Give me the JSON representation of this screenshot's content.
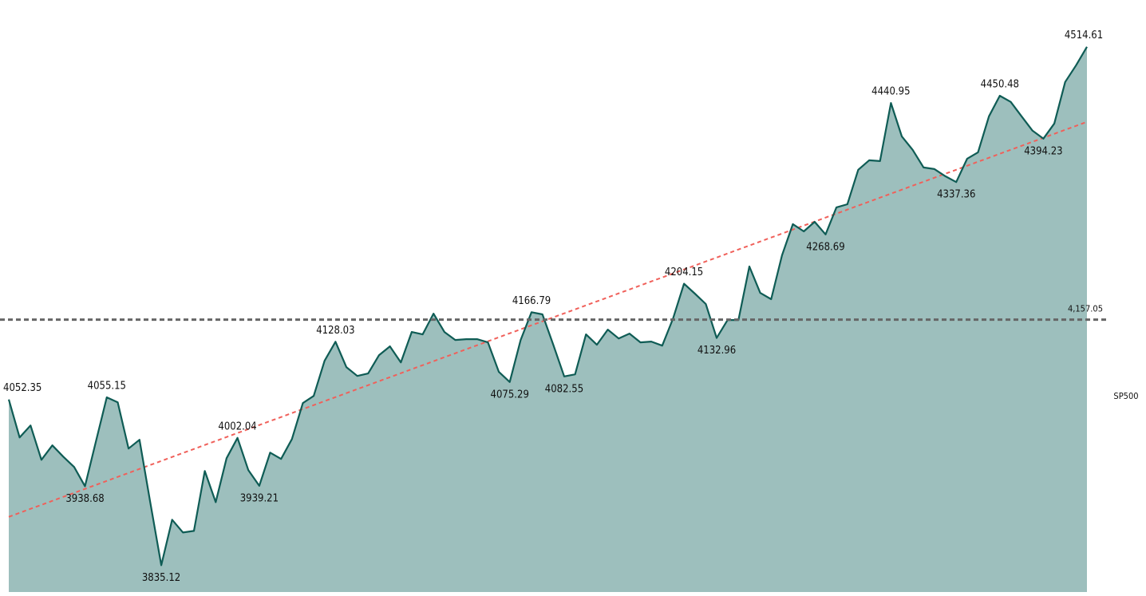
{
  "chart_data": {
    "type": "area",
    "ylim": [
      3800,
      4576
    ],
    "trend_line": true,
    "trend_color": "#f0605a",
    "reference_line": {
      "value": 4157.05,
      "label": "4,157.05"
    },
    "reference_color": "#666666",
    "series": [
      {
        "name": "SP500",
        "color": "#0f5c55",
        "fill": "#9dbfbd",
        "values": [
          4052.35,
          4002.6,
          4018.3,
          3973.3,
          3992.2,
          3977.5,
          3963.9,
          3938.68,
          3997.4,
          4055.15,
          4048.7,
          3988.0,
          3999.5,
          3916.8,
          3835.12,
          3894.8,
          3878.0,
          3880.1,
          3958.6,
          3917.8,
          3975.4,
          4002.04,
          3959.7,
          3939.21,
          3982.7,
          3974.4,
          4000.5,
          4047.6,
          4057.1,
          4103.1,
          4128.03,
          4094.8,
          4083.2,
          4086.4,
          4110.5,
          4122.0,
          4101.0,
          4140.8,
          4137.7,
          4164.9,
          4140.8,
          4130.4,
          4131.4,
          4131.4,
          4127.2,
          4088.5,
          4075.29,
          4130.4,
          4166.79,
          4163.9,
          4124.1,
          4082.55,
          4085.3,
          4137.7,
          4124.1,
          4144.0,
          4132.4,
          4138.7,
          4127.2,
          4128.3,
          4123.0,
          4158.6,
          4204.15,
          4191.1,
          4177.5,
          4132.96,
          4156.5,
          4156.5,
          4226.7,
          4192.1,
          4183.8,
          4241.3,
          4282.2,
          4272.7,
          4285.3,
          4268.69,
          4304.2,
          4308.3,
          4353.4,
          4365.9,
          4364.9,
          4440.95,
          4397.3,
          4379.5,
          4356.5,
          4354.4,
          4345.0,
          4337.36,
          4368.0,
          4376.4,
          4423.5,
          4450.48,
          4442.4,
          4423.5,
          4404.7,
          4394.23,
          4414.1,
          4468.5,
          4490.5,
          4514.61
        ],
        "value_labels": [
          "4052.35",
          null,
          null,
          null,
          null,
          null,
          null,
          "3938.68",
          null,
          "4055.15",
          null,
          null,
          null,
          null,
          "3835.12",
          null,
          null,
          null,
          null,
          null,
          null,
          "4002.04",
          null,
          "3939.21",
          null,
          null,
          null,
          null,
          null,
          null,
          "4128.03",
          null,
          null,
          null,
          null,
          null,
          null,
          null,
          null,
          null,
          null,
          null,
          null,
          null,
          null,
          null,
          "4075.29",
          null,
          "4166.79",
          null,
          null,
          "4082.55",
          null,
          null,
          null,
          null,
          null,
          null,
          null,
          null,
          null,
          null,
          "4204.15",
          null,
          null,
          "4132.96",
          null,
          null,
          null,
          null,
          null,
          null,
          null,
          null,
          null,
          "4268.69",
          null,
          null,
          null,
          null,
          null,
          "4440.95",
          null,
          null,
          null,
          null,
          null,
          "4337.36",
          null,
          null,
          null,
          "4450.48",
          null,
          null,
          null,
          "4394.23",
          null,
          null,
          null,
          "4514.61"
        ]
      }
    ]
  }
}
